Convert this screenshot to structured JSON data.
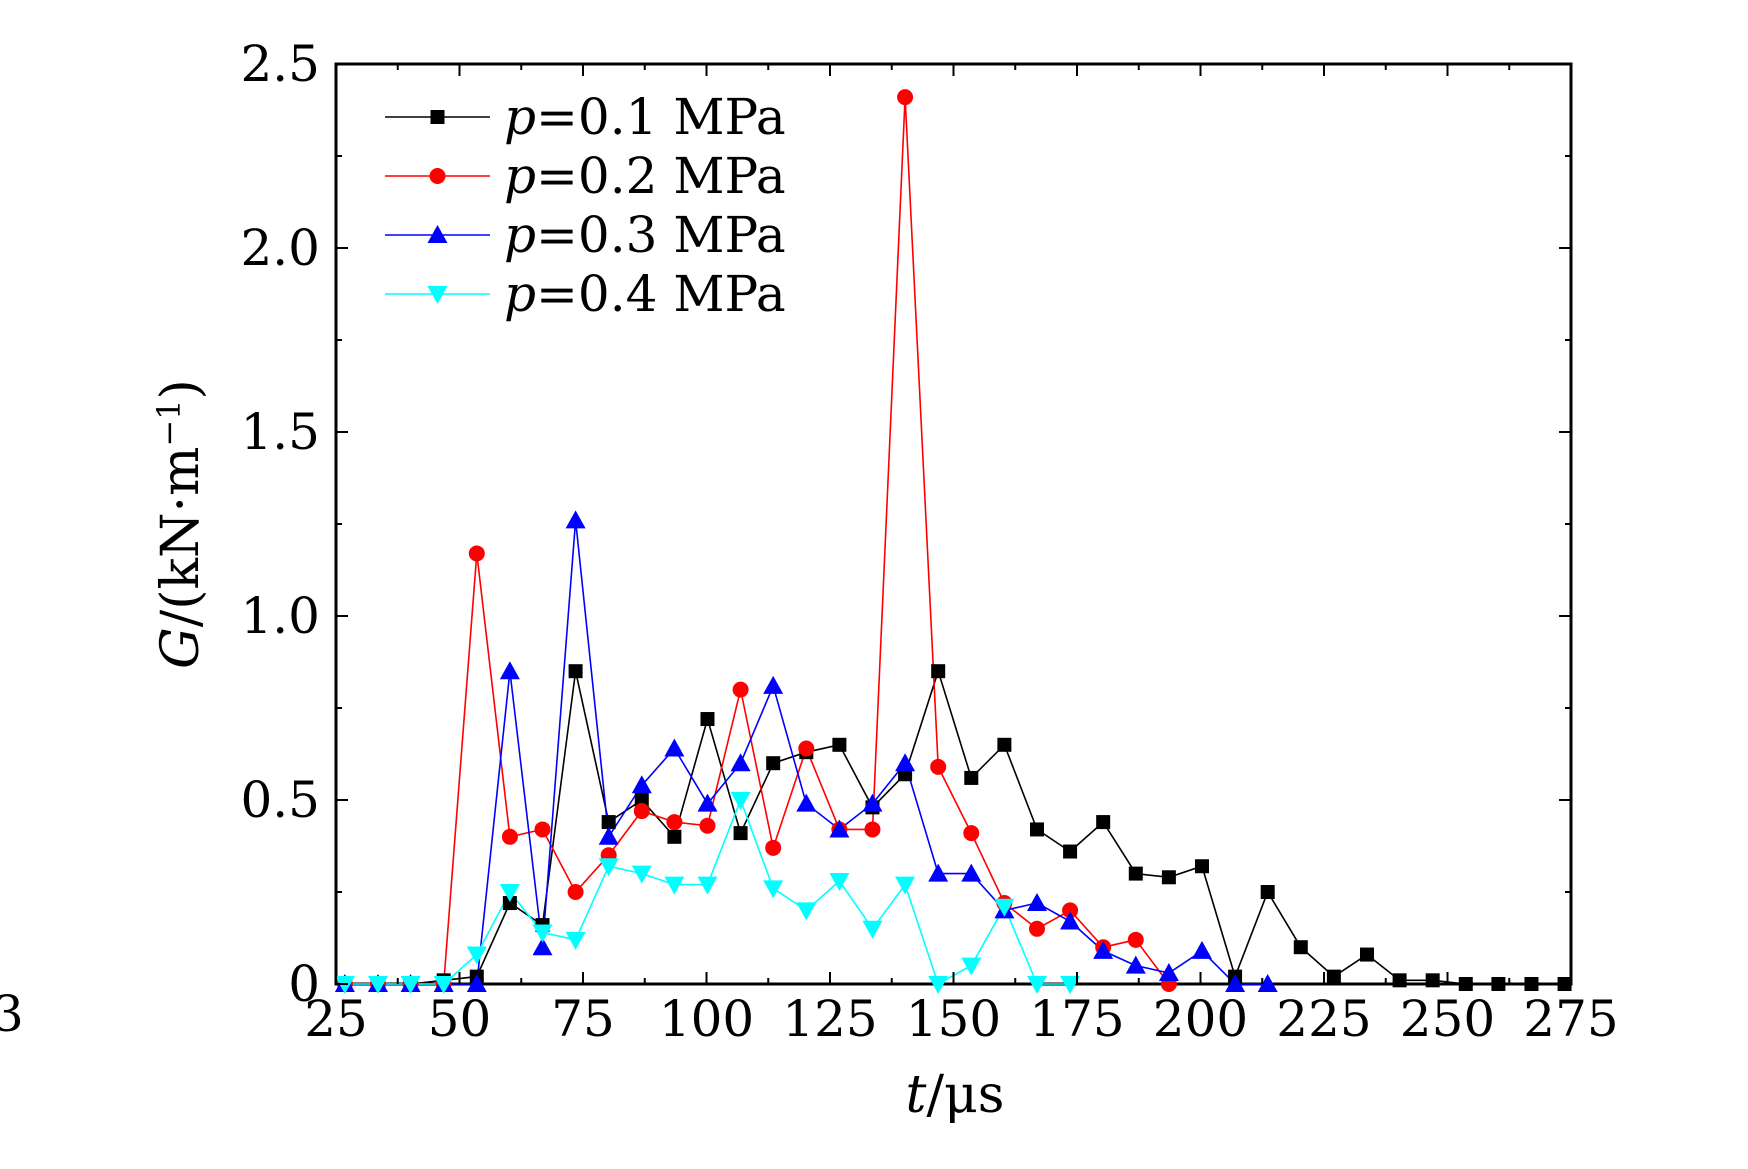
{
  "stray_char": "3",
  "chart_data": {
    "type": "line",
    "title": "",
    "x_axis": {
      "var": "t",
      "unit": "/μs",
      "lim": [
        25,
        275
      ],
      "ticks": [
        25,
        50,
        75,
        100,
        125,
        150,
        175,
        200,
        225,
        250,
        275
      ]
    },
    "y_axis": {
      "var": "G",
      "unit": "/(kN·m",
      "unit_sup": "−1",
      "unit_close": ")",
      "lim": [
        0,
        2.5
      ],
      "ticks": [
        0,
        0.5,
        1.0,
        1.5,
        2.0,
        2.5
      ],
      "tick_labels": [
        "0",
        "0.5",
        "1.0",
        "1.5",
        "2.0",
        "2.5"
      ]
    },
    "legend": {
      "placement": "top-left"
    },
    "series": [
      {
        "name": "p=0.1 MPa",
        "label_var": "p",
        "label_rest": "=0.1 MPa",
        "color": "#000000",
        "marker": "square",
        "x": [
          26.8,
          33.5,
          40.1,
          46.8,
          53.5,
          60.2,
          66.8,
          73.5,
          80.2,
          86.9,
          93.5,
          100.2,
          106.9,
          113.5,
          120.2,
          126.9,
          133.6,
          140.2,
          146.9,
          153.6,
          160.3,
          166.9,
          173.6,
          180.3,
          186.9,
          193.6,
          200.3,
          207,
          213.6,
          220.3,
          227,
          233.7,
          240.3,
          247,
          253.7,
          260.3,
          267,
          273.7
        ],
        "y": [
          0,
          0,
          0,
          0.01,
          0.02,
          0.22,
          0.16,
          0.85,
          0.44,
          0.5,
          0.4,
          0.72,
          0.41,
          0.6,
          0.63,
          0.65,
          0.48,
          0.57,
          0.85,
          0.56,
          0.65,
          0.42,
          0.36,
          0.44,
          0.3,
          0.29,
          0.32,
          0.02,
          0.25,
          0.1,
          0.02,
          0.08,
          0.01,
          0.01,
          0,
          0,
          0,
          0
        ]
      },
      {
        "name": "p=0.2 MPa",
        "label_var": "p",
        "label_rest": "=0.2 MPa",
        "color": "#ff0000",
        "marker": "circle",
        "x": [
          26.8,
          33.5,
          40.1,
          46.8,
          53.5,
          60.2,
          66.8,
          73.5,
          80.2,
          86.9,
          93.5,
          100.2,
          106.9,
          113.5,
          120.2,
          126.9,
          133.6,
          140.2,
          146.9,
          153.6,
          160.3,
          166.9,
          173.6,
          180.3,
          186.9,
          193.6
        ],
        "y": [
          0,
          0,
          0,
          0,
          1.17,
          0.4,
          0.42,
          0.25,
          0.35,
          0.47,
          0.44,
          0.43,
          0.8,
          0.37,
          0.64,
          0.42,
          0.42,
          2.41,
          0.59,
          0.41,
          0.22,
          0.15,
          0.2,
          0.1,
          0.12,
          0
        ]
      },
      {
        "name": "p=0.3 MPa",
        "label_var": "p",
        "label_rest": "=0.3 MPa",
        "color": "#0000ff",
        "marker": "triangle-up",
        "x": [
          26.8,
          33.5,
          40.1,
          46.8,
          53.5,
          60.2,
          66.8,
          73.5,
          80.2,
          86.9,
          93.5,
          100.2,
          106.9,
          113.5,
          120.2,
          126.9,
          133.6,
          140.2,
          146.9,
          153.6,
          160.3,
          166.9,
          173.6,
          180.3,
          186.9,
          193.6,
          200.3,
          207,
          213.6
        ],
        "y": [
          0,
          0,
          0,
          0,
          0,
          0.85,
          0.1,
          1.26,
          0.4,
          0.54,
          0.64,
          0.49,
          0.6,
          0.81,
          0.49,
          0.42,
          0.49,
          0.6,
          0.3,
          0.3,
          0.2,
          0.22,
          0.17,
          0.09,
          0.05,
          0.03,
          0.09,
          0,
          0
        ]
      },
      {
        "name": "p=0.4 MPa",
        "label_var": "p",
        "label_rest": "=0.4 MPa",
        "color": "#00ffff",
        "marker": "triangle-down",
        "x": [
          26.8,
          33.5,
          40.1,
          46.8,
          53.5,
          60.2,
          66.8,
          73.5,
          80.2,
          86.9,
          93.5,
          100.2,
          106.9,
          113.5,
          120.2,
          126.9,
          133.6,
          140.2,
          146.9,
          153.6,
          160.3,
          166.9,
          173.6
        ],
        "y": [
          0,
          0,
          0,
          0,
          0.08,
          0.25,
          0.14,
          0.12,
          0.32,
          0.3,
          0.27,
          0.27,
          0.5,
          0.26,
          0.2,
          0.28,
          0.15,
          0.27,
          0,
          0.05,
          0.21,
          0,
          0
        ]
      }
    ]
  }
}
